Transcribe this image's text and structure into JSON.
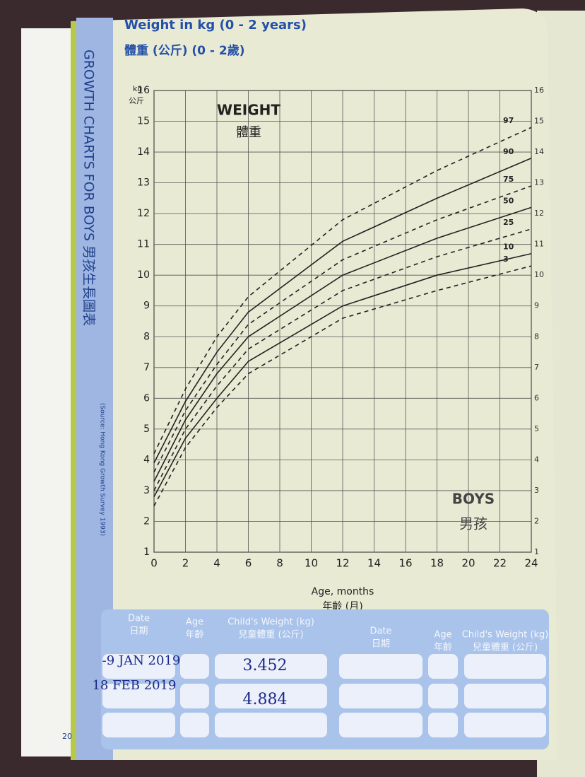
{
  "chart_data": {
    "type": "line",
    "title": "Weight in kg (0 - 2 years)",
    "subtitle": "體重 (公斤) (0 - 2歲)",
    "y_label": "kg",
    "y_label_zh": "公斤",
    "x_label": "Age, months",
    "x_label_zh": "年齡 (月)",
    "annotations": [
      "WEIGHT",
      "體重",
      "BOYS",
      "男孩"
    ],
    "x": [
      0,
      2,
      4,
      6,
      12,
      18,
      24
    ],
    "xlim": [
      0,
      24
    ],
    "xticks": [
      0,
      2,
      4,
      6,
      8,
      10,
      12,
      14,
      16,
      18,
      20,
      22,
      24
    ],
    "ylim": [
      1,
      16
    ],
    "yticks": [
      1,
      2,
      3,
      4,
      5,
      6,
      7,
      8,
      9,
      10,
      11,
      12,
      13,
      14,
      15,
      16
    ],
    "grid": true,
    "series": [
      {
        "name": "97",
        "color": "#222222",
        "dash": true,
        "values": [
          4.2,
          6.3,
          8.0,
          9.3,
          11.8,
          13.4,
          14.8
        ]
      },
      {
        "name": "90",
        "color": "#222222",
        "dash": false,
        "values": [
          3.9,
          5.9,
          7.5,
          8.8,
          11.1,
          12.5,
          13.8
        ]
      },
      {
        "name": "75",
        "color": "#222222",
        "dash": true,
        "values": [
          3.6,
          5.6,
          7.1,
          8.4,
          10.5,
          11.8,
          12.9
        ]
      },
      {
        "name": "50",
        "color": "#222222",
        "dash": false,
        "values": [
          3.3,
          5.3,
          6.8,
          8.0,
          10.0,
          11.2,
          12.2
        ]
      },
      {
        "name": "25",
        "color": "#222222",
        "dash": true,
        "values": [
          3.0,
          5.0,
          6.4,
          7.6,
          9.5,
          10.6,
          11.5
        ]
      },
      {
        "name": "10",
        "color": "#222222",
        "dash": false,
        "values": [
          2.8,
          4.7,
          6.0,
          7.2,
          9.0,
          10.0,
          10.7
        ]
      },
      {
        "name": "3",
        "color": "#222222",
        "dash": true,
        "values": [
          2.5,
          4.4,
          5.7,
          6.8,
          8.6,
          9.5,
          10.3
        ]
      }
    ]
  },
  "page": {
    "side_title": "GROWTH CHARTS FOR BOYS 男孩生長圖表",
    "source": "(Source: Hong Kong Growth Survey 1993)",
    "page_number": "20",
    "table": {
      "headers": [
        {
          "en": "Date",
          "zh": "日期"
        },
        {
          "en": "Age",
          "zh": "年齡"
        },
        {
          "en": "Child's Weight (kg)",
          "zh": "兒童體重 (公斤)"
        }
      ],
      "rows": [
        [
          "-9 JAN 2019",
          "3.452"
        ],
        [
          "18 FEB 2019",
          "4.884"
        ]
      ]
    }
  }
}
